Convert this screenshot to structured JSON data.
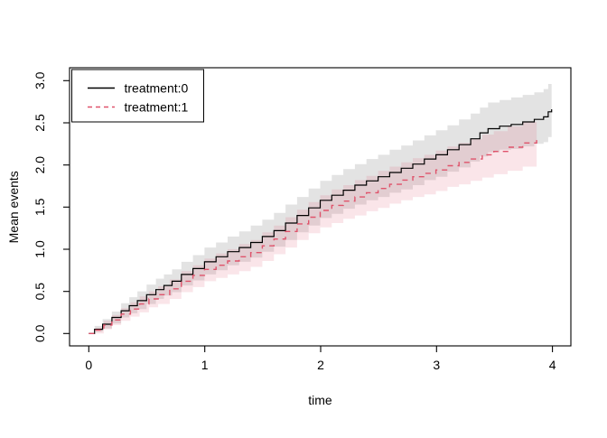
{
  "figure": {
    "background": "#ffffff"
  },
  "chart_data": {
    "type": "line",
    "title": "",
    "xlabel": "time",
    "ylabel": "Mean events",
    "x_ticks": [
      "0",
      "1",
      "2",
      "3",
      "4"
    ],
    "y_ticks": [
      "0.0",
      "0.5",
      "1.0",
      "1.5",
      "2.0",
      "2.5",
      "3.0"
    ],
    "xlim": [
      -0.166,
      4.166
    ],
    "ylim": [
      -0.147,
      3.153
    ],
    "grid": false,
    "legend": {
      "position": "topleft",
      "entries": [
        {
          "label": "treatment:0",
          "line_style": "solid",
          "color": "#000000"
        },
        {
          "label": "treatment:1",
          "line_style": "dashed",
          "color": "#DF536B"
        }
      ]
    },
    "series": [
      {
        "name": "treatment:0",
        "line_color": "#000000",
        "line_style": "solid",
        "band_color": "rgba(128,128,128,0.22)",
        "x": [
          0,
          0.05,
          0.12,
          0.2,
          0.28,
          0.35,
          0.42,
          0.5,
          0.58,
          0.65,
          0.72,
          0.8,
          0.9,
          1.0,
          1.1,
          1.2,
          1.3,
          1.4,
          1.5,
          1.6,
          1.7,
          1.8,
          1.9,
          2.0,
          2.1,
          2.2,
          2.3,
          2.4,
          2.5,
          2.6,
          2.7,
          2.8,
          2.9,
          3.0,
          3.1,
          3.2,
          3.3,
          3.38,
          3.45,
          3.55,
          3.65,
          3.75,
          3.85,
          3.93,
          3.97,
          4.0
        ],
        "y": [
          0,
          0.05,
          0.11,
          0.19,
          0.27,
          0.33,
          0.39,
          0.46,
          0.52,
          0.57,
          0.62,
          0.7,
          0.77,
          0.85,
          0.91,
          0.97,
          1.02,
          1.08,
          1.15,
          1.22,
          1.31,
          1.4,
          1.49,
          1.58,
          1.64,
          1.7,
          1.76,
          1.81,
          1.86,
          1.91,
          1.96,
          2.01,
          2.07,
          2.12,
          2.18,
          2.24,
          2.31,
          2.38,
          2.43,
          2.46,
          2.48,
          2.51,
          2.54,
          2.57,
          2.63,
          2.66
        ],
        "upper": [
          0,
          0.09,
          0.17,
          0.26,
          0.36,
          0.43,
          0.5,
          0.58,
          0.65,
          0.7,
          0.76,
          0.85,
          0.93,
          1.02,
          1.08,
          1.15,
          1.21,
          1.28,
          1.35,
          1.43,
          1.53,
          1.62,
          1.72,
          1.81,
          1.88,
          1.95,
          2.01,
          2.07,
          2.12,
          2.18,
          2.23,
          2.29,
          2.35,
          2.41,
          2.47,
          2.54,
          2.61,
          2.68,
          2.74,
          2.77,
          2.8,
          2.83,
          2.86,
          2.9,
          2.96,
          2.99
        ],
        "lower": [
          0,
          0.02,
          0.06,
          0.12,
          0.19,
          0.24,
          0.29,
          0.35,
          0.41,
          0.45,
          0.49,
          0.57,
          0.63,
          0.7,
          0.75,
          0.81,
          0.85,
          0.9,
          0.97,
          1.03,
          1.11,
          1.2,
          1.28,
          1.37,
          1.42,
          1.48,
          1.53,
          1.58,
          1.62,
          1.67,
          1.71,
          1.76,
          1.82,
          1.86,
          1.92,
          1.97,
          2.04,
          2.1,
          2.15,
          2.18,
          2.19,
          2.22,
          2.25,
          2.27,
          2.33,
          2.36
        ]
      },
      {
        "name": "treatment:1",
        "line_color": "#DF536B",
        "line_style": "dashed",
        "band_color": "rgba(223,83,107,0.15)",
        "x": [
          0,
          0.06,
          0.13,
          0.2,
          0.28,
          0.36,
          0.44,
          0.52,
          0.6,
          0.7,
          0.8,
          0.9,
          1.0,
          1.1,
          1.2,
          1.3,
          1.4,
          1.5,
          1.6,
          1.7,
          1.8,
          1.9,
          2.0,
          2.1,
          2.2,
          2.3,
          2.4,
          2.5,
          2.6,
          2.7,
          2.8,
          2.9,
          3.0,
          3.1,
          3.2,
          3.3,
          3.4,
          3.5,
          3.62,
          3.75,
          3.87
        ],
        "y": [
          0,
          0.04,
          0.1,
          0.16,
          0.23,
          0.29,
          0.35,
          0.41,
          0.46,
          0.53,
          0.62,
          0.69,
          0.76,
          0.81,
          0.86,
          0.91,
          0.96,
          1.04,
          1.12,
          1.21,
          1.3,
          1.38,
          1.46,
          1.52,
          1.57,
          1.62,
          1.67,
          1.72,
          1.77,
          1.82,
          1.86,
          1.9,
          1.94,
          1.99,
          2.03,
          2.07,
          2.12,
          2.16,
          2.21,
          2.26,
          2.3
        ],
        "upper": [
          0,
          0.07,
          0.15,
          0.22,
          0.3,
          0.37,
          0.44,
          0.5,
          0.56,
          0.64,
          0.74,
          0.81,
          0.89,
          0.95,
          1.0,
          1.06,
          1.11,
          1.2,
          1.28,
          1.38,
          1.47,
          1.56,
          1.64,
          1.71,
          1.76,
          1.82,
          1.87,
          1.93,
          1.98,
          2.03,
          2.08,
          2.12,
          2.17,
          2.22,
          2.26,
          2.31,
          2.36,
          2.4,
          2.46,
          2.51,
          2.56
        ],
        "lower": [
          0,
          0.0,
          0.05,
          0.1,
          0.15,
          0.2,
          0.25,
          0.31,
          0.35,
          0.41,
          0.49,
          0.55,
          0.62,
          0.66,
          0.7,
          0.74,
          0.79,
          0.86,
          0.94,
          1.02,
          1.11,
          1.19,
          1.26,
          1.31,
          1.36,
          1.4,
          1.45,
          1.49,
          1.54,
          1.58,
          1.62,
          1.65,
          1.69,
          1.74,
          1.77,
          1.81,
          1.85,
          1.89,
          1.93,
          1.98,
          2.02
        ]
      }
    ]
  }
}
